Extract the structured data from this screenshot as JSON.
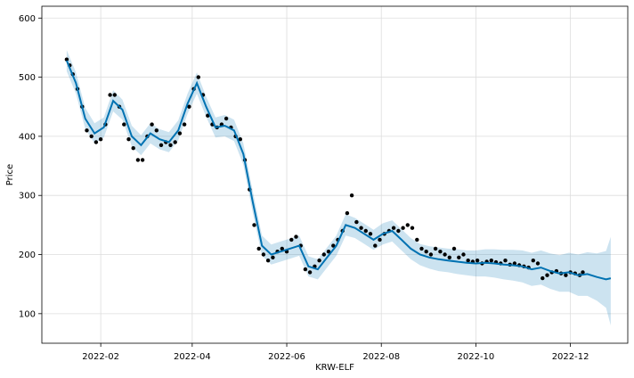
{
  "chart_data": {
    "type": "line",
    "xlabel": "KRW-ELF",
    "ylabel": "Price",
    "x_range": [
      "2021-12-25",
      "2023-01-07"
    ],
    "ylim": [
      50,
      620
    ],
    "grid": true,
    "x_ticks": [
      "2022-02",
      "2022-04",
      "2022-06",
      "2022-08",
      "2022-10",
      "2022-12"
    ],
    "y_ticks": [
      100,
      200,
      300,
      400,
      500,
      600
    ],
    "colors": {
      "observed": "#000000",
      "forecast_line": "#0072B2",
      "uncertainty_band": "#0072B2"
    },
    "series": [
      {
        "role": "forecast",
        "x": [
          "2022-01-10",
          "2022-01-16",
          "2022-01-22",
          "2022-01-28",
          "2022-02-03",
          "2022-02-09",
          "2022-02-15",
          "2022-02-21",
          "2022-02-27",
          "2022-03-05",
          "2022-03-11",
          "2022-03-17",
          "2022-03-23",
          "2022-03-29",
          "2022-04-04",
          "2022-04-10",
          "2022-04-16",
          "2022-04-22",
          "2022-04-28",
          "2022-05-04",
          "2022-05-10",
          "2022-05-16",
          "2022-05-22",
          "2022-05-28",
          "2022-06-03",
          "2022-06-09",
          "2022-06-15",
          "2022-06-21",
          "2022-06-27",
          "2022-07-03",
          "2022-07-09",
          "2022-07-15",
          "2022-07-21",
          "2022-07-27",
          "2022-08-02",
          "2022-08-08",
          "2022-08-14",
          "2022-08-20",
          "2022-08-26",
          "2022-09-01",
          "2022-09-07",
          "2022-09-13",
          "2022-09-19",
          "2022-09-25",
          "2022-10-01",
          "2022-10-07",
          "2022-10-13",
          "2022-10-19",
          "2022-10-25",
          "2022-10-31",
          "2022-11-06",
          "2022-11-12",
          "2022-11-18",
          "2022-11-24",
          "2022-11-30",
          "2022-12-06",
          "2022-12-12",
          "2022-12-18",
          "2022-12-24",
          "2022-12-27"
        ],
        "y": [
          528,
          490,
          430,
          405,
          415,
          460,
          445,
          400,
          385,
          405,
          395,
          390,
          410,
          455,
          490,
          450,
          415,
          418,
          410,
          370,
          290,
          215,
          200,
          205,
          210,
          215,
          180,
          175,
          195,
          215,
          250,
          245,
          235,
          225,
          235,
          240,
          225,
          210,
          200,
          195,
          192,
          190,
          188,
          186,
          185,
          186,
          185,
          183,
          182,
          180,
          175,
          178,
          172,
          168,
          170,
          165,
          167,
          162,
          158,
          160
        ],
        "yhat_lower": [
          510,
          472,
          413,
          388,
          398,
          442,
          428,
          383,
          368,
          388,
          378,
          373,
          393,
          438,
          472,
          433,
          398,
          400,
          392,
          352,
          272,
          198,
          183,
          188,
          193,
          198,
          163,
          158,
          178,
          198,
          232,
          228,
          218,
          208,
          217,
          222,
          207,
          192,
          182,
          176,
          172,
          170,
          167,
          165,
          163,
          163,
          161,
          158,
          156,
          153,
          147,
          149,
          142,
          137,
          137,
          130,
          130,
          122,
          110,
          80
        ],
        "yhat_upper": [
          546,
          508,
          448,
          422,
          432,
          478,
          462,
          418,
          402,
          422,
          412,
          407,
          427,
          472,
          508,
          467,
          432,
          436,
          428,
          388,
          308,
          232,
          217,
          222,
          227,
          232,
          197,
          192,
          212,
          232,
          268,
          262,
          252,
          242,
          253,
          258,
          243,
          228,
          218,
          214,
          212,
          210,
          209,
          207,
          207,
          209,
          209,
          208,
          208,
          207,
          203,
          207,
          202,
          199,
          203,
          200,
          204,
          202,
          206,
          230
        ]
      },
      {
        "role": "observed",
        "x": [
          "2022-01-10",
          "2022-01-12",
          "2022-01-14",
          "2022-01-17",
          "2022-01-20",
          "2022-01-23",
          "2022-01-26",
          "2022-01-29",
          "2022-02-01",
          "2022-02-04",
          "2022-02-07",
          "2022-02-10",
          "2022-02-13",
          "2022-02-16",
          "2022-02-19",
          "2022-02-22",
          "2022-02-25",
          "2022-02-28",
          "2022-03-03",
          "2022-03-06",
          "2022-03-09",
          "2022-03-12",
          "2022-03-15",
          "2022-03-18",
          "2022-03-21",
          "2022-03-24",
          "2022-03-27",
          "2022-03-30",
          "2022-04-02",
          "2022-04-05",
          "2022-04-08",
          "2022-04-11",
          "2022-04-14",
          "2022-04-17",
          "2022-04-20",
          "2022-04-23",
          "2022-04-26",
          "2022-04-29",
          "2022-05-02",
          "2022-05-05",
          "2022-05-08",
          "2022-05-11",
          "2022-05-14",
          "2022-05-17",
          "2022-05-20",
          "2022-05-23",
          "2022-05-26",
          "2022-05-29",
          "2022-06-01",
          "2022-06-04",
          "2022-06-07",
          "2022-06-10",
          "2022-06-13",
          "2022-06-16",
          "2022-06-19",
          "2022-06-22",
          "2022-06-25",
          "2022-06-28",
          "2022-07-01",
          "2022-07-04",
          "2022-07-07",
          "2022-07-10",
          "2022-07-13",
          "2022-07-16",
          "2022-07-19",
          "2022-07-22",
          "2022-07-25",
          "2022-07-28",
          "2022-07-31",
          "2022-08-03",
          "2022-08-06",
          "2022-08-09",
          "2022-08-12",
          "2022-08-15",
          "2022-08-18",
          "2022-08-21",
          "2022-08-24",
          "2022-08-27",
          "2022-08-30",
          "2022-09-02",
          "2022-09-05",
          "2022-09-08",
          "2022-09-11",
          "2022-09-14",
          "2022-09-17",
          "2022-09-20",
          "2022-09-23",
          "2022-09-26",
          "2022-09-29",
          "2022-10-02",
          "2022-10-05",
          "2022-10-08",
          "2022-10-11",
          "2022-10-14",
          "2022-10-17",
          "2022-10-20",
          "2022-10-23",
          "2022-10-26",
          "2022-10-29",
          "2022-11-01",
          "2022-11-04",
          "2022-11-07",
          "2022-11-10",
          "2022-11-13",
          "2022-11-16",
          "2022-11-19",
          "2022-11-22",
          "2022-11-25",
          "2022-11-28",
          "2022-12-01",
          "2022-12-04",
          "2022-12-07",
          "2022-12-09"
        ],
        "y": [
          530,
          520,
          505,
          480,
          450,
          410,
          400,
          390,
          395,
          420,
          470,
          470,
          450,
          420,
          395,
          380,
          360,
          360,
          400,
          420,
          410,
          385,
          390,
          385,
          390,
          405,
          420,
          450,
          480,
          500,
          470,
          435,
          420,
          415,
          420,
          430,
          415,
          400,
          395,
          360,
          310,
          250,
          210,
          200,
          190,
          195,
          205,
          210,
          205,
          225,
          230,
          215,
          175,
          170,
          180,
          190,
          200,
          205,
          215,
          225,
          240,
          270,
          300,
          255,
          245,
          240,
          235,
          215,
          225,
          235,
          240,
          245,
          240,
          245,
          250,
          245,
          225,
          210,
          205,
          200,
          210,
          205,
          200,
          195,
          210,
          195,
          200,
          190,
          188,
          190,
          185,
          188,
          190,
          187,
          185,
          190,
          183,
          185,
          182,
          180,
          178,
          190,
          185,
          160,
          165,
          170,
          172,
          168,
          165,
          170,
          168,
          165,
          170
        ]
      }
    ]
  }
}
